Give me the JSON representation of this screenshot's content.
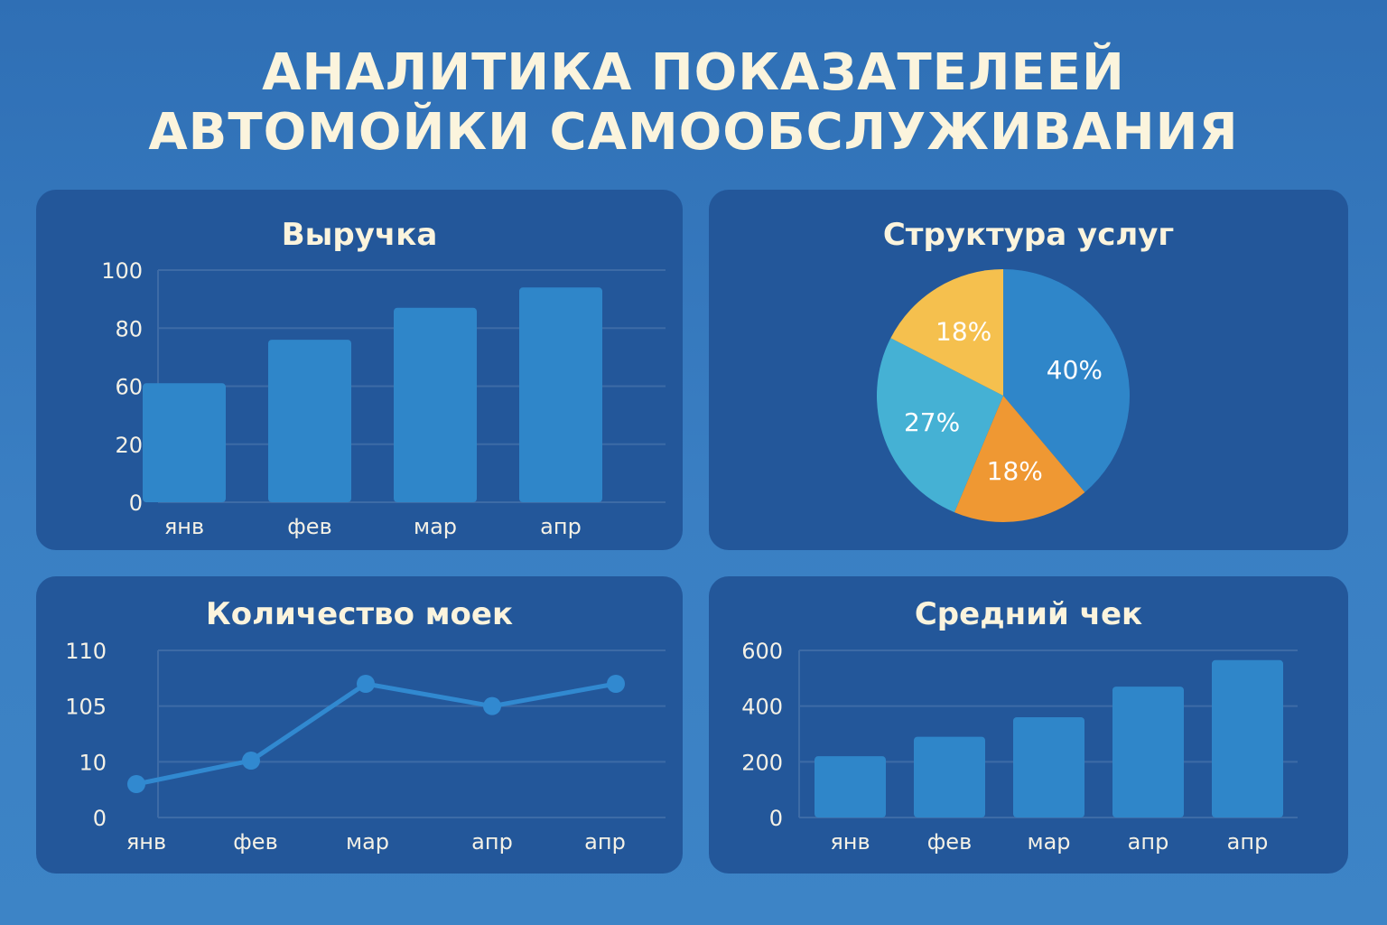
{
  "page": {
    "title_lines": [
      "АНАЛИТИКА ПОКАЗАТЕЛЕЕЙ",
      "АВТОМОЙКИ САМООБСЛУЖИВАНИЯ"
    ]
  },
  "colors": {
    "bar": "#2f86c9",
    "line": "#3189d0",
    "grid": "#3d6ba6",
    "slice_blue": "#2f86c9",
    "slice_orange": "#ef9833",
    "slice_cyan": "#45b1d4",
    "slice_yellow": "#f5c04e"
  },
  "chart_data": [
    {
      "id": "revenue",
      "type": "bar",
      "title": "Выручка",
      "categories": [
        "янв",
        "фев",
        "мар",
        "апр"
      ],
      "y_ticks": [
        "100",
        "80",
        "60",
        "20",
        "0"
      ],
      "values": [
        61,
        76,
        87,
        94
      ],
      "ylim": [
        0,
        100
      ],
      "grid": true
    },
    {
      "id": "services",
      "type": "pie",
      "title": "Структура услуг",
      "slices": [
        {
          "label": "40%",
          "value": 40,
          "color": "#2f86c9"
        },
        {
          "label": "18%",
          "value": 18,
          "color": "#ef9833"
        },
        {
          "label": "27%",
          "value": 27,
          "color": "#45b1d4"
        },
        {
          "label": "18%",
          "value": 18,
          "color": "#f5c04e"
        }
      ]
    },
    {
      "id": "washes",
      "type": "line",
      "title": "Количество моек",
      "categories": [
        "янв",
        "фев",
        "мар",
        "апр",
        "апр"
      ],
      "y_ticks": [
        "110",
        "105",
        "10",
        "0"
      ],
      "values": [
        6,
        12,
        107,
        105,
        107
      ],
      "grid": true
    },
    {
      "id": "avg_check",
      "type": "bar",
      "title": "Средний чек",
      "categories": [
        "янв",
        "фев",
        "мар",
        "апр",
        "апр"
      ],
      "y_ticks": [
        "600",
        "400",
        "200",
        "0"
      ],
      "values": [
        220,
        290,
        360,
        470,
        565
      ],
      "ylim": [
        0,
        600
      ],
      "grid": true
    }
  ]
}
